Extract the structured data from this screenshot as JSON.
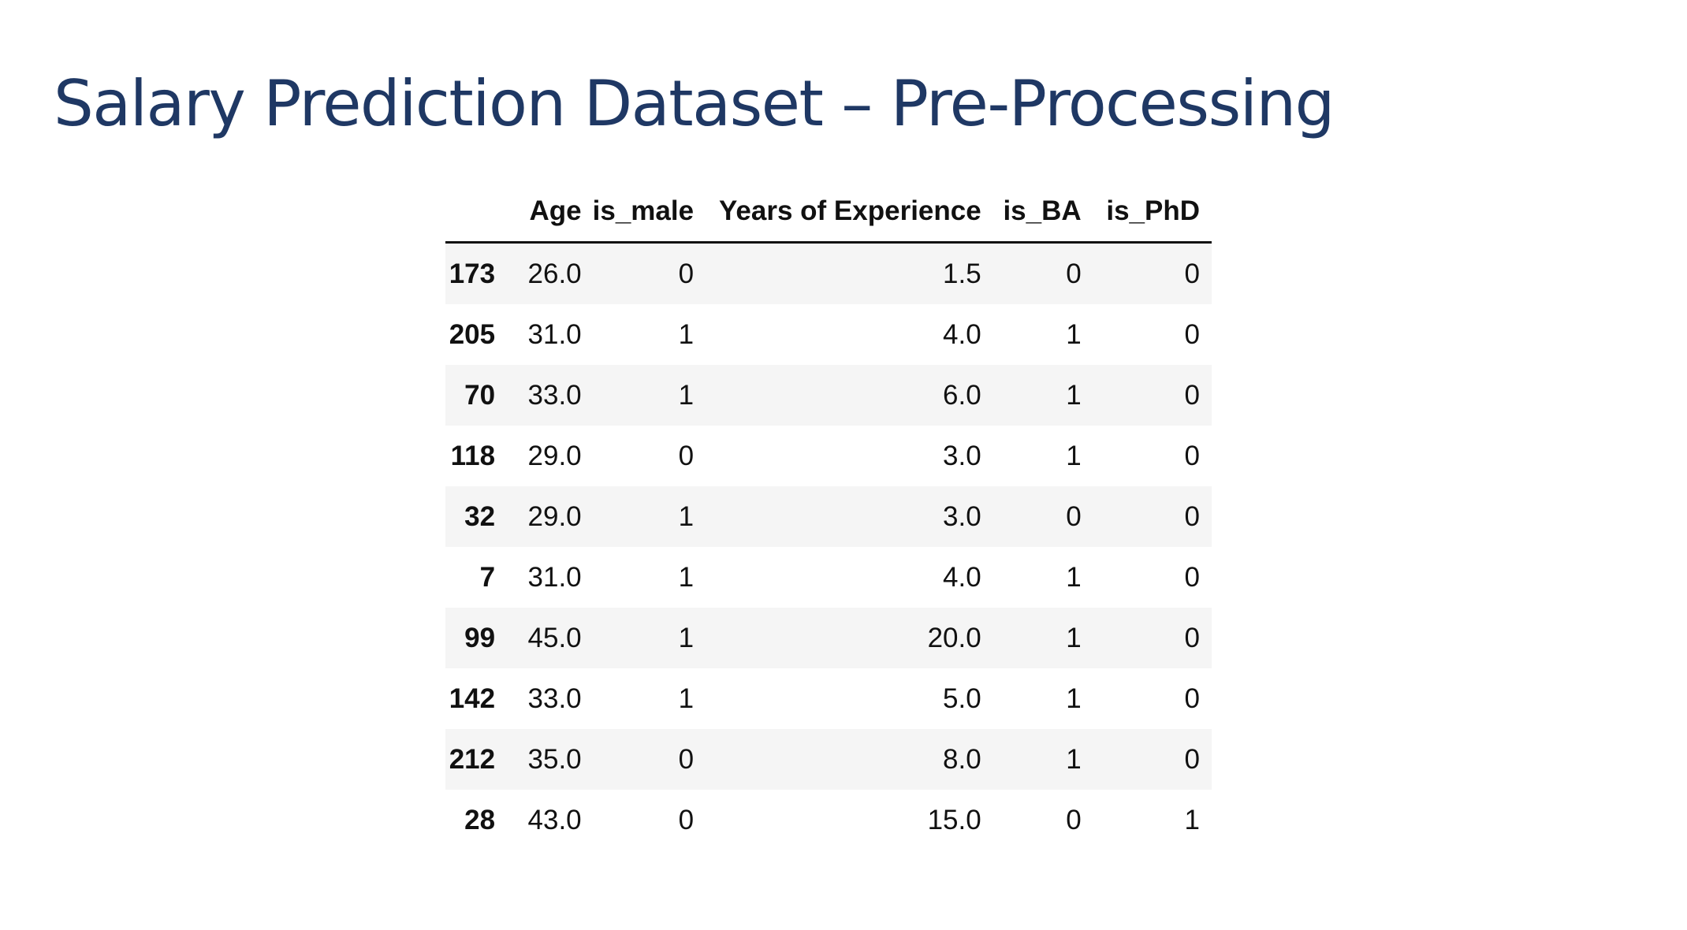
{
  "slide": {
    "title": "Salary Prediction Dataset – Pre-Processing"
  },
  "table": {
    "columns": [
      "",
      "Age",
      "is_male",
      "Years of Experience",
      "is_BA",
      "is_PhD"
    ],
    "rows": [
      {
        "index": "173",
        "cells": [
          "26.0",
          "0",
          "1.5",
          "0",
          "0"
        ]
      },
      {
        "index": "205",
        "cells": [
          "31.0",
          "1",
          "4.0",
          "1",
          "0"
        ]
      },
      {
        "index": "70",
        "cells": [
          "33.0",
          "1",
          "6.0",
          "1",
          "0"
        ]
      },
      {
        "index": "118",
        "cells": [
          "29.0",
          "0",
          "3.0",
          "1",
          "0"
        ]
      },
      {
        "index": "32",
        "cells": [
          "29.0",
          "1",
          "3.0",
          "0",
          "0"
        ]
      },
      {
        "index": "7",
        "cells": [
          "31.0",
          "1",
          "4.0",
          "1",
          "0"
        ]
      },
      {
        "index": "99",
        "cells": [
          "45.0",
          "1",
          "20.0",
          "1",
          "0"
        ]
      },
      {
        "index": "142",
        "cells": [
          "33.0",
          "1",
          "5.0",
          "1",
          "0"
        ]
      },
      {
        "index": "212",
        "cells": [
          "35.0",
          "0",
          "8.0",
          "1",
          "0"
        ]
      },
      {
        "index": "28",
        "cells": [
          "43.0",
          "0",
          "15.0",
          "0",
          "1"
        ]
      }
    ]
  }
}
